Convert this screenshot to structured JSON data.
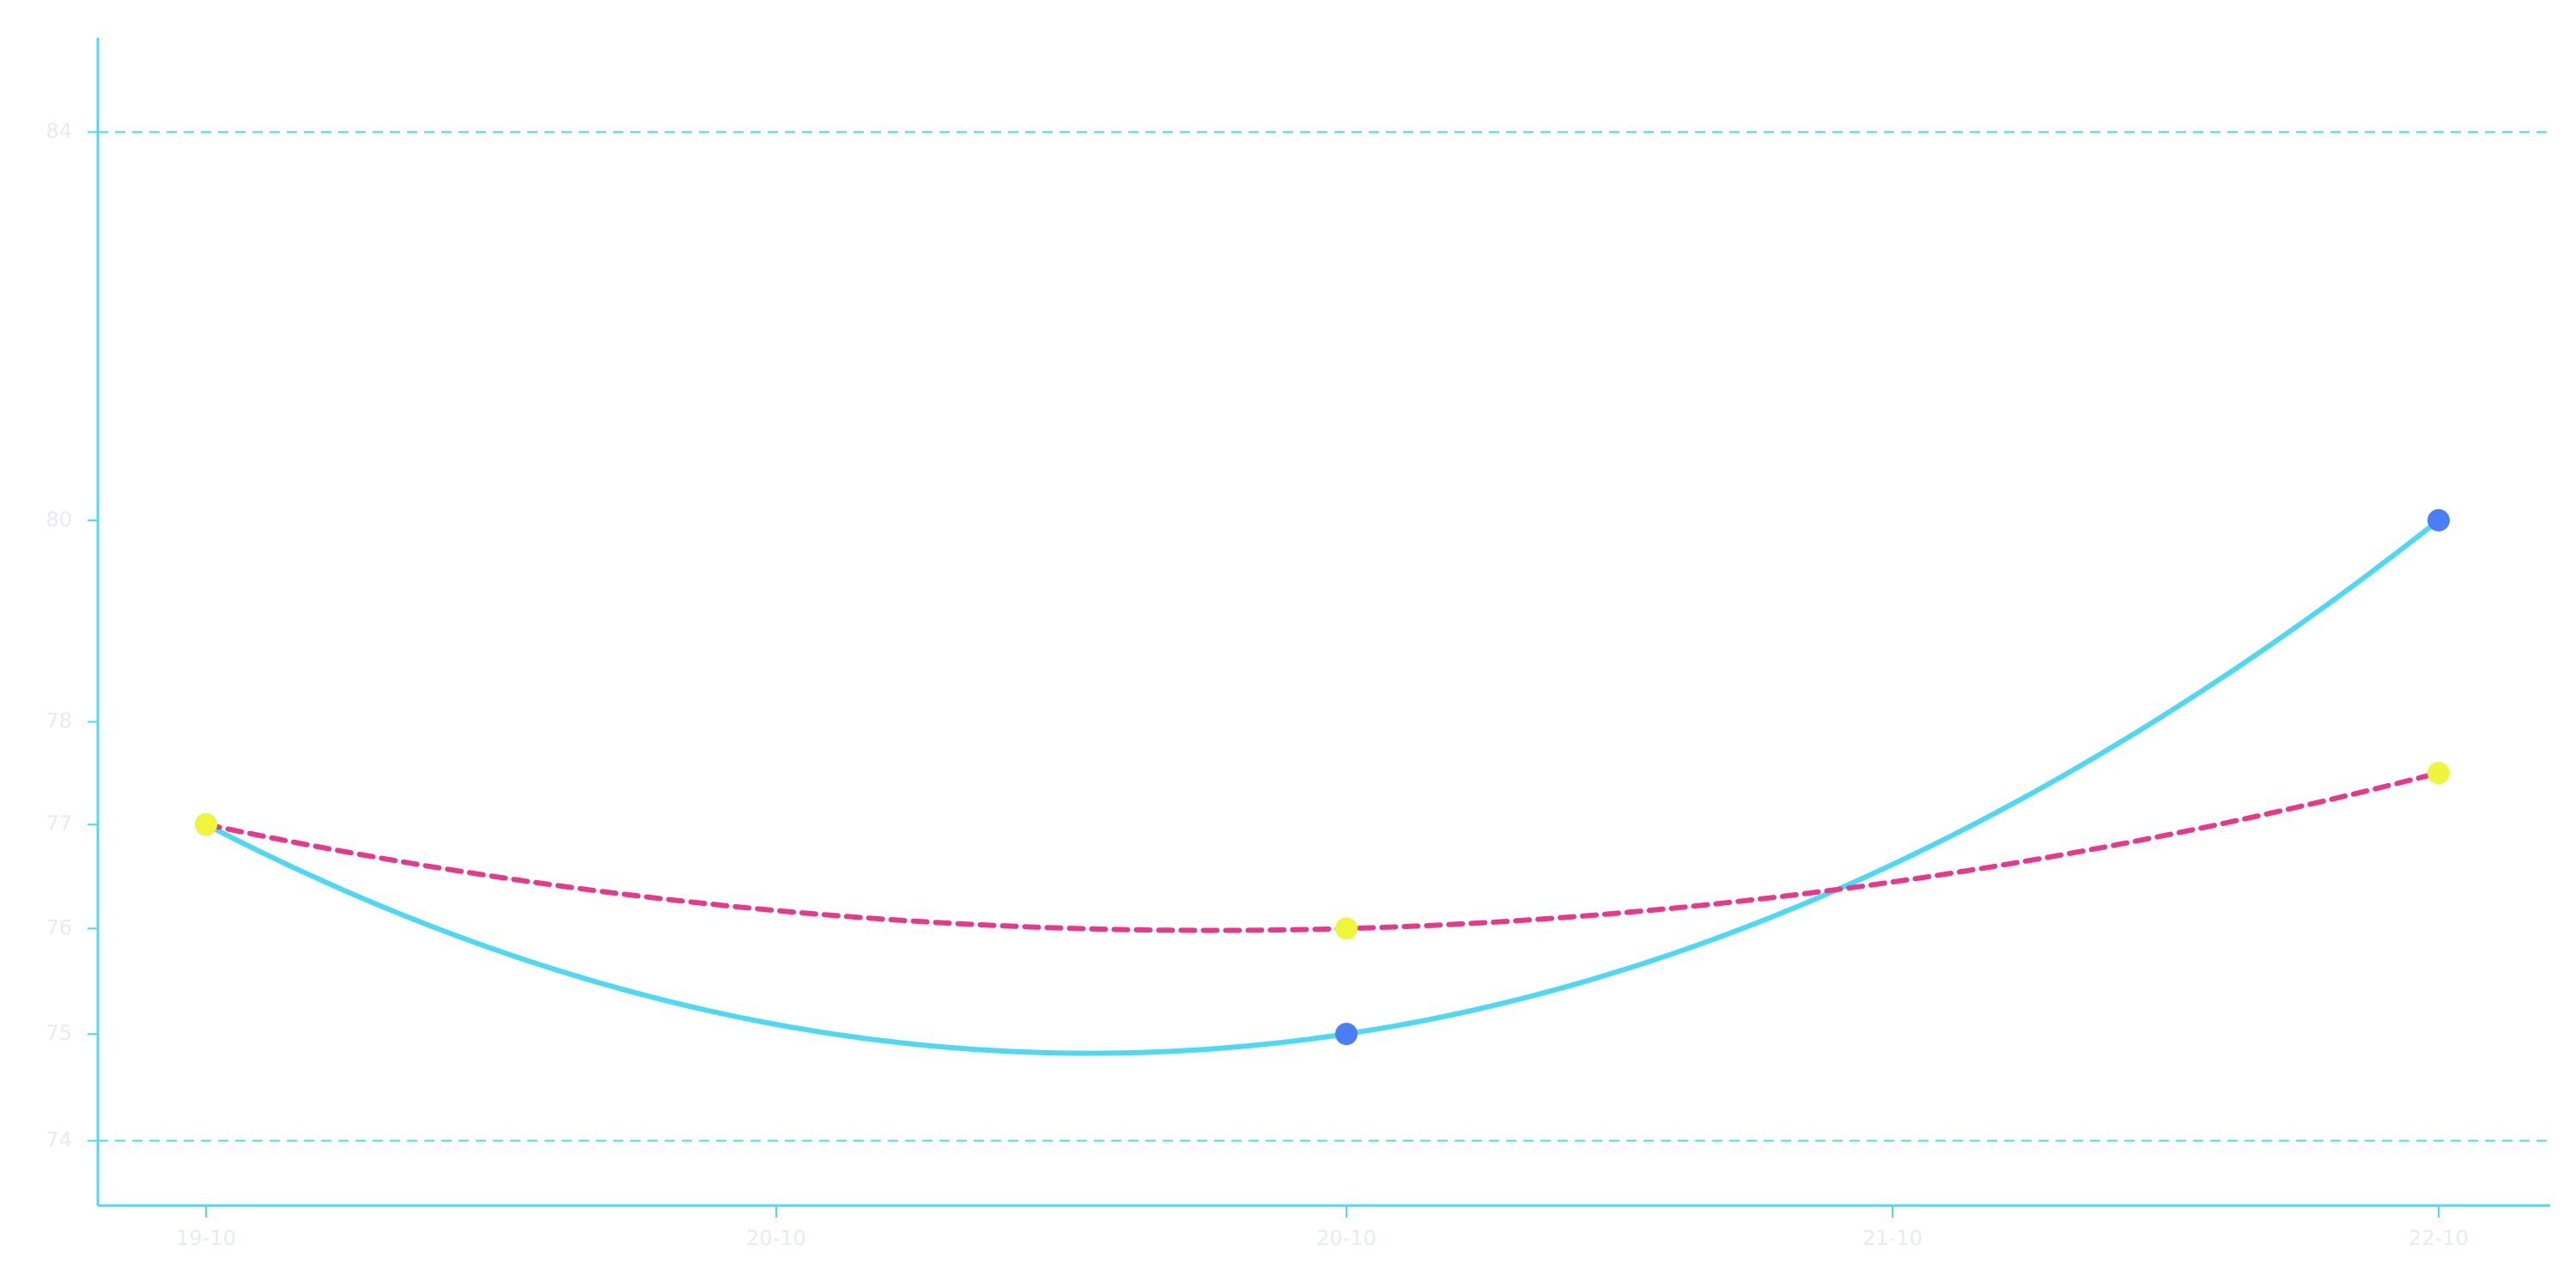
{
  "chart_data": {
    "type": "line",
    "x_tick_labels": [
      "19-10",
      "20-10",
      "20-10",
      "21-10",
      "22-10"
    ],
    "x": [
      "19-10",
      "20-10",
      "22-10"
    ],
    "y_tick_labels": [
      "74",
      "75",
      "76",
      "77",
      "78",
      "80",
      "84"
    ],
    "ylim": [
      73.4,
      85
    ],
    "y_scale": "log",
    "grid": "horizontal dashed lines at 74 and 84",
    "legend": "none",
    "series": [
      {
        "values": [
          77,
          75,
          80
        ],
        "line_style": "solid",
        "smoothing": "curved",
        "line_color": "#4dd9f4",
        "marker_color": "#4a7ef5"
      },
      {
        "values": [
          77,
          76,
          77.5
        ],
        "line_style": "dashed",
        "smoothing": "curved",
        "line_color": "#e8388c",
        "marker_color": "#eef53a"
      }
    ],
    "colors": {
      "axis": "#4dd9f4",
      "tick_label": "#e6eaf2",
      "gridline": "#4dd9f4"
    }
  }
}
